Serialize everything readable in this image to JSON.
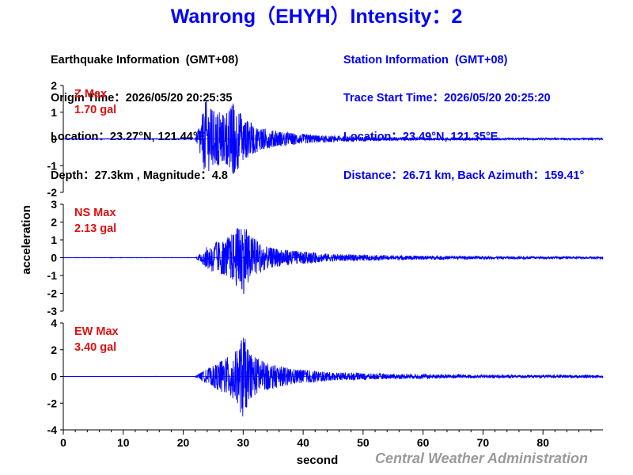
{
  "title": "Wanrong（EHYH）Intensity：2",
  "earthquake": {
    "heading": "Earthquake Information  (GMT+08)",
    "origin_time": "Origin Time：2026/05/20 20:25:35",
    "location": "Location：23.27°N, 121.44°E",
    "depth_magnitude": "Depth：27.3km , Magnitude：4.8"
  },
  "station": {
    "heading": "Station Information  (GMT+08)",
    "trace_start": "Trace Start Time：2026/05/20 20:25:20",
    "location": "Location：23.49°N, 121.35°E",
    "distance": "Distance：26.71 km, Back Azimuth：159.41°"
  },
  "credit": "Central Weather Administration",
  "colors": {
    "title": "#0000ff",
    "trace": "#0000ff",
    "max_label": "#e01010",
    "credit": "#9a9a9a"
  },
  "chart_data": {
    "type": "line",
    "xlabel": "second",
    "ylabel": "acceleration",
    "xlim": [
      0,
      90
    ],
    "x_ticks": [
      0,
      10,
      20,
      30,
      40,
      50,
      60,
      70,
      80
    ],
    "grid": false,
    "panels": [
      {
        "component": "Z",
        "max_label": "Z Max",
        "max_value": "1.70 gal",
        "peak": 1.7,
        "ylim": [
          -2,
          2
        ],
        "y_ticks": [
          2,
          1,
          0,
          -1,
          -2
        ],
        "envelope": [
          [
            0,
            0.01
          ],
          [
            22,
            0.01
          ],
          [
            23,
            0.7
          ],
          [
            23.8,
            1.5
          ],
          [
            25,
            1.1
          ],
          [
            27,
            0.9
          ],
          [
            28.5,
            1.4
          ],
          [
            30,
            0.8
          ],
          [
            33,
            0.4
          ],
          [
            37,
            0.25
          ],
          [
            42,
            0.14
          ],
          [
            50,
            0.08
          ],
          [
            60,
            0.05
          ],
          [
            75,
            0.04
          ],
          [
            90,
            0.03
          ]
        ]
      },
      {
        "component": "NS",
        "max_label": "NS Max",
        "max_value": "2.13 gal",
        "peak": 2.13,
        "ylim": [
          -3,
          3
        ],
        "y_ticks": [
          3,
          2,
          1,
          0,
          -1,
          -2,
          -3
        ],
        "envelope": [
          [
            0,
            0.01
          ],
          [
            22,
            0.01
          ],
          [
            23,
            0.3
          ],
          [
            24.5,
            0.8
          ],
          [
            27,
            1.0
          ],
          [
            28.5,
            1.5
          ],
          [
            30,
            2.1
          ],
          [
            31,
            1.3
          ],
          [
            34,
            0.6
          ],
          [
            38,
            0.4
          ],
          [
            45,
            0.2
          ],
          [
            55,
            0.12
          ],
          [
            70,
            0.08
          ],
          [
            90,
            0.06
          ]
        ]
      },
      {
        "component": "EW",
        "max_label": "EW Max",
        "max_value": "3.40 gal",
        "peak": 3.4,
        "ylim": [
          -4,
          4
        ],
        "y_ticks": [
          4,
          2,
          0,
          -2,
          -4
        ],
        "envelope": [
          [
            0,
            0.01
          ],
          [
            22,
            0.01
          ],
          [
            23,
            0.3
          ],
          [
            25,
            0.8
          ],
          [
            27.5,
            1.5
          ],
          [
            29,
            2.0
          ],
          [
            30,
            3.4
          ],
          [
            31,
            1.7
          ],
          [
            34,
            1.0
          ],
          [
            38,
            0.6
          ],
          [
            45,
            0.3
          ],
          [
            55,
            0.18
          ],
          [
            70,
            0.12
          ],
          [
            90,
            0.1
          ]
        ]
      }
    ]
  }
}
